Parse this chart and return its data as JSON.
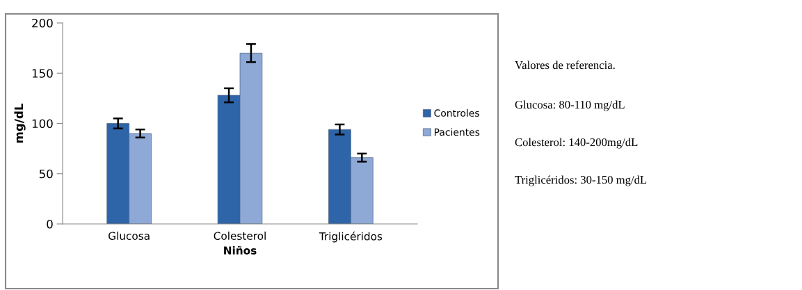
{
  "chart_data": {
    "type": "bar",
    "xlabel": "Niños",
    "ylabel": "mg/dL",
    "categories": [
      "Glucosa",
      "Colesterol",
      "Triglicéridos"
    ],
    "series": [
      {
        "name": "Controles",
        "color": "#2e64a8",
        "values": [
          100,
          128,
          94
        ],
        "errors": [
          5,
          7,
          5
        ]
      },
      {
        "name": "Pacientes",
        "color": "#8ea9d6",
        "values": [
          90,
          170,
          66
        ],
        "errors": [
          4,
          9,
          4
        ]
      }
    ],
    "ylim": [
      0,
      200
    ],
    "yticks": [
      0,
      50,
      100,
      150,
      200
    ],
    "grid": false,
    "legend": "right",
    "annotations": [
      "Valores de referencia.",
      "Glucosa: 80-110 mg/dL",
      "Colesterol: 140-200mg/dL",
      "Triglicéridos: 30-150 mg/dL"
    ]
  }
}
